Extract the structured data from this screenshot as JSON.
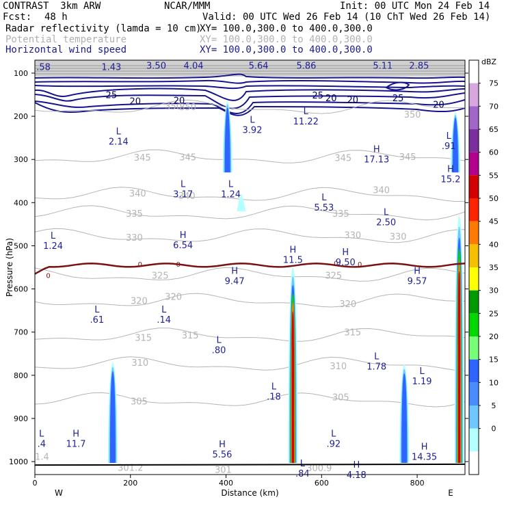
{
  "header": {
    "model": "CONTRAST  3km ARW",
    "org": "NCAR/MMM",
    "init": "Init: 00 UTC Mon 24 Feb 14",
    "fcst_label": "Fcst:",
    "fcst_value": "48 h",
    "valid": "Valid: 00 UTC Wed 26 Feb 14 (10 ChT Wed 26 Feb 14)",
    "fields": [
      {
        "name": "Radar reflectivity (lamda = 10 cm)",
        "xy": "XY= 100.0,300.0 to 400.0,300.0"
      },
      {
        "name": "Potential temperature",
        "xy": "XY= 100.0,300.0 to 400.0,300.0"
      },
      {
        "name": "Horizontal wind speed",
        "xy": "XY= 100.0,300.0 to 400.0,300.0"
      }
    ]
  },
  "colors": {
    "wind": "#14148c",
    "theta": "#b4b4b4",
    "freezing": "#7a1010",
    "label": "#1e1e96"
  },
  "chart_data": {
    "type": "cross-section",
    "xlabel": "Distance (km)",
    "ylabel": "Pressure (hPa)",
    "xlim": [
      0,
      900
    ],
    "ylim": [
      1030,
      70
    ],
    "xticks": [
      0,
      200,
      400,
      600,
      800
    ],
    "yticks": [
      100,
      200,
      300,
      400,
      500,
      600,
      700,
      800,
      900,
      1000
    ],
    "endpoints": {
      "left": "W",
      "right": "E"
    },
    "colorbar": {
      "units": "dBZ",
      "levels": [
        75,
        70,
        65,
        60,
        55,
        50,
        45,
        40,
        35,
        30,
        25,
        20,
        15,
        10,
        5,
        0
      ],
      "colors": [
        "#ffffff",
        "#d8a6e0",
        "#a266c8",
        "#7b2f9e",
        "#b4008c",
        "#d20000",
        "#ff2400",
        "#ff7a00",
        "#f5c000",
        "#ffff00",
        "#009a00",
        "#00d800",
        "#78ff78",
        "#2e64ff",
        "#4a8cff",
        "#6ec8ff",
        "#b4ffff",
        "#ffffff"
      ]
    },
    "theta_labels": [
      {
        "text": "350",
        "x": 290,
        "p": 176
      },
      {
        "text": "350",
        "x": 320,
        "p": 178
      },
      {
        "text": "350",
        "x": 790,
        "p": 195
      },
      {
        "text": "345",
        "x": 225,
        "p": 295
      },
      {
        "text": "345",
        "x": 320,
        "p": 294
      },
      {
        "text": "345",
        "x": 645,
        "p": 296
      },
      {
        "text": "345",
        "x": 780,
        "p": 293
      },
      {
        "text": "340",
        "x": 215,
        "p": 378
      },
      {
        "text": "340",
        "x": 318,
        "p": 384
      },
      {
        "text": "340",
        "x": 725,
        "p": 370
      },
      {
        "text": "335",
        "x": 208,
        "p": 425
      },
      {
        "text": "335",
        "x": 640,
        "p": 425
      },
      {
        "text": "330",
        "x": 208,
        "p": 480
      },
      {
        "text": "330",
        "x": 665,
        "p": 475
      },
      {
        "text": "330",
        "x": 760,
        "p": 478
      },
      {
        "text": "325",
        "x": 262,
        "p": 568
      },
      {
        "text": "325",
        "x": 625,
        "p": 568
      },
      {
        "text": "320",
        "x": 218,
        "p": 627
      },
      {
        "text": "320",
        "x": 290,
        "p": 617
      },
      {
        "text": "320",
        "x": 655,
        "p": 634
      },
      {
        "text": "315",
        "x": 227,
        "p": 712
      },
      {
        "text": "315",
        "x": 325,
        "p": 707
      },
      {
        "text": "315",
        "x": 665,
        "p": 700
      },
      {
        "text": "310",
        "x": 220,
        "p": 770
      },
      {
        "text": "310",
        "x": 635,
        "p": 778
      },
      {
        "text": "305",
        "x": 218,
        "p": 860
      },
      {
        "text": "305",
        "x": 640,
        "p": 850
      },
      {
        "text": "301.2",
        "x": 200,
        "p": 1013
      },
      {
        "text": "301",
        "x": 394,
        "p": 1018
      },
      {
        "text": "300.9",
        "x": 595,
        "p": 1014
      },
      {
        "text": "1.4",
        "x": 15,
        "p": 988
      }
    ],
    "wind_contour_labels": [
      {
        "text": "25",
        "x": 160,
        "p": 150
      },
      {
        "text": "20",
        "x": 210,
        "p": 164
      },
      {
        "text": "20",
        "x": 302,
        "p": 163
      },
      {
        "text": "25",
        "x": 592,
        "p": 151
      },
      {
        "text": "20",
        "x": 620,
        "p": 157
      },
      {
        "text": "20",
        "x": 665,
        "p": 161
      },
      {
        "text": "25",
        "x": 760,
        "p": 157
      },
      {
        "text": "20",
        "x": 845,
        "p": 172
      }
    ],
    "wind_top_values": [
      {
        "text": ".58",
        "x": 18,
        "p": 85
      },
      {
        "text": "1.43",
        "x": 160,
        "p": 85
      },
      {
        "text": "3.50",
        "x": 254,
        "p": 82
      },
      {
        "text": "4.04",
        "x": 332,
        "p": 82
      },
      {
        "text": "5.64",
        "x": 468,
        "p": 82
      },
      {
        "text": "5.86",
        "x": 568,
        "p": 82
      },
      {
        "text": "5.11",
        "x": 728,
        "p": 82
      },
      {
        "text": "2.85",
        "x": 804,
        "p": 82
      }
    ],
    "freezing_labels": [
      {
        "text": "0",
        "x": 28,
        "p": 568
      },
      {
        "text": "0",
        "x": 220,
        "p": 542
      },
      {
        "text": "0",
        "x": 300,
        "p": 542
      },
      {
        "text": "0",
        "x": 630,
        "p": 540
      },
      {
        "text": "0",
        "x": 680,
        "p": 542
      }
    ],
    "extrema": [
      {
        "type": "L",
        "value": "3.92",
        "x": 455,
        "p": 218
      },
      {
        "type": "L",
        "value": "11.22",
        "x": 567,
        "p": 198
      },
      {
        "type": "L",
        "value": "2.14",
        "x": 175,
        "p": 245
      },
      {
        "type": "L",
        "value": ".91",
        "x": 866,
        "p": 255
      },
      {
        "type": "H",
        "value": "17.13",
        "x": 715,
        "p": 286
      },
      {
        "type": "H",
        "value": "15.2",
        "x": 870,
        "p": 332
      },
      {
        "type": "L",
        "value": "3.17",
        "x": 310,
        "p": 367
      },
      {
        "type": "L",
        "value": "1.24",
        "x": 410,
        "p": 367
      },
      {
        "type": "L",
        "value": "5.53",
        "x": 605,
        "p": 398
      },
      {
        "type": "L",
        "value": "2.50",
        "x": 735,
        "p": 432
      },
      {
        "type": "L",
        "value": "1.24",
        "x": 38,
        "p": 487
      },
      {
        "type": "H",
        "value": "6.54",
        "x": 310,
        "p": 485
      },
      {
        "type": "H",
        "value": "11.5",
        "x": 540,
        "p": 519
      },
      {
        "type": "H",
        "value": "9.50",
        "x": 650,
        "p": 525
      },
      {
        "type": "H",
        "value": "9.47",
        "x": 418,
        "p": 568
      },
      {
        "type": "H",
        "value": "9.57",
        "x": 800,
        "p": 568
      },
      {
        "type": "L",
        "value": ".61",
        "x": 130,
        "p": 658
      },
      {
        "type": "L",
        "value": ".14",
        "x": 270,
        "p": 658
      },
      {
        "type": "L",
        "value": ".80",
        "x": 385,
        "p": 728
      },
      {
        "type": "L",
        "value": "1.78",
        "x": 715,
        "p": 766
      },
      {
        "type": "L",
        "value": "1.19",
        "x": 810,
        "p": 800
      },
      {
        "type": "L",
        "value": ".18",
        "x": 500,
        "p": 836
      },
      {
        "type": "L",
        "value": ".4",
        "x": 14,
        "p": 945
      },
      {
        "type": "H",
        "value": "11.7",
        "x": 86,
        "p": 945
      },
      {
        "type": "L",
        "value": ".92",
        "x": 625,
        "p": 945
      },
      {
        "type": "H",
        "value": "5.56",
        "x": 392,
        "p": 970
      },
      {
        "type": "H",
        "value": "14.35",
        "x": 815,
        "p": 975
      },
      {
        "type": "L",
        "value": ".84",
        "x": 560,
        "p": 1014
      },
      {
        "type": "H",
        "value": "4.18",
        "x": 673,
        "p": 1017
      }
    ],
    "reflectivity_cells": [
      {
        "x": 163,
        "top": 770,
        "bottom": 1003,
        "peak": 15
      },
      {
        "x": 403,
        "top": 165,
        "bottom": 330,
        "peak": 15
      },
      {
        "x": 432,
        "top": 380,
        "bottom": 420,
        "peak": 5
      },
      {
        "x": 540,
        "top": 550,
        "bottom": 1003,
        "peak": 45
      },
      {
        "x": 773,
        "top": 775,
        "bottom": 1003,
        "peak": 15
      },
      {
        "x": 880,
        "top": 190,
        "bottom": 330,
        "peak": 15
      },
      {
        "x": 888,
        "top": 430,
        "bottom": 1003,
        "peak": 45
      }
    ]
  }
}
